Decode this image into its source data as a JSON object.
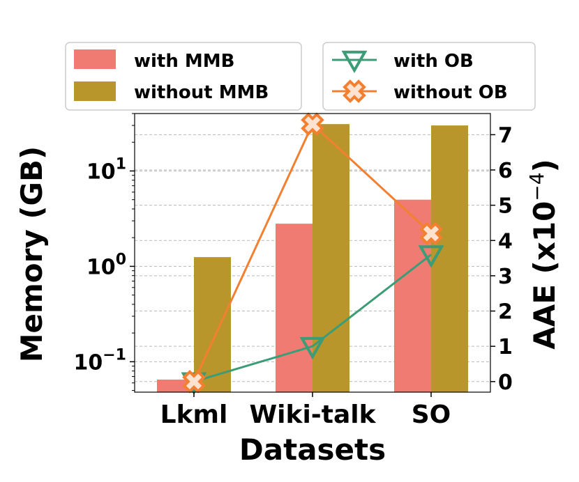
{
  "chart_data": {
    "type": "bar+line",
    "categories": [
      "Lkml",
      "Wiki-talk",
      "SO"
    ],
    "xlabel": "Datasets",
    "ylabel_left": "Memory (GB)",
    "ylabel_right_text": "AAE (x10",
    "ylabel_right_exp": "−4",
    "ylabel_right_close": ")",
    "left_axis": {
      "scale": "log",
      "ylim": [
        0.048,
        40
      ],
      "ticks": [
        {
          "value": 0.1,
          "base": "10",
          "exp": "−1"
        },
        {
          "value": 1,
          "base": "10",
          "exp": "0"
        },
        {
          "value": 10,
          "base": "10",
          "exp": "1"
        }
      ]
    },
    "right_axis": {
      "scale": "linear",
      "ylim": [
        -0.3,
        7.6
      ],
      "ticks": [
        {
          "value": 0,
          "label": "0"
        },
        {
          "value": 1,
          "label": "1"
        },
        {
          "value": 2,
          "label": "2"
        },
        {
          "value": 3,
          "label": "3"
        },
        {
          "value": 4,
          "label": "4"
        },
        {
          "value": 5,
          "label": "5"
        },
        {
          "value": 6,
          "label": "6"
        },
        {
          "value": 7,
          "label": "7"
        }
      ]
    },
    "bar_series": [
      {
        "name": "with MMB",
        "color": "#F07B72",
        "values": [
          0.065,
          2.8,
          5.0
        ]
      },
      {
        "name": "without MMB",
        "color": "#B8962B",
        "values": [
          1.25,
          31,
          30
        ]
      }
    ],
    "line_series": [
      {
        "name": "with OB",
        "color": "#3C9C75",
        "marker": "triangle-down",
        "values": [
          0.0,
          1.0,
          3.6
        ]
      },
      {
        "name": "without OB",
        "color": "#F28030",
        "marker": "x-filled",
        "values": [
          0.0,
          7.3,
          4.2
        ]
      }
    ],
    "grid": true,
    "legend_placement": "top"
  }
}
